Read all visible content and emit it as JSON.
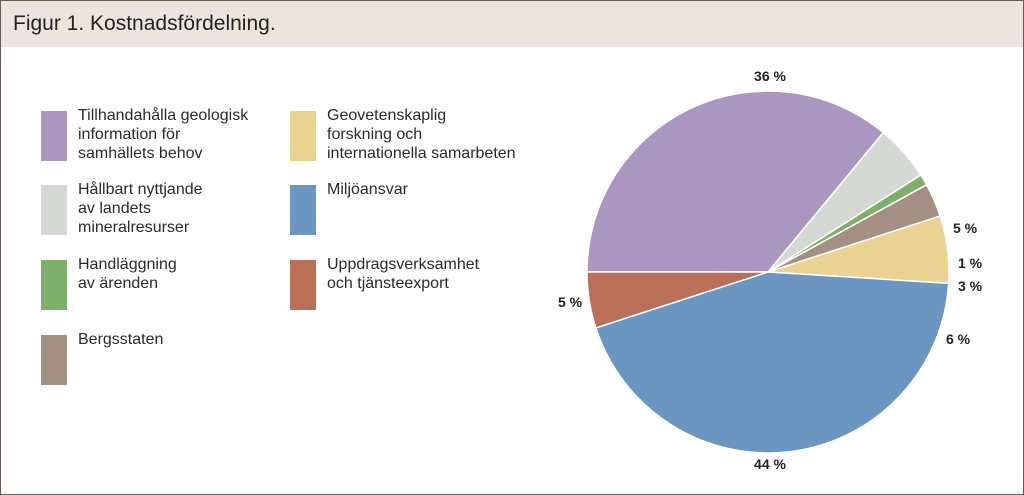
{
  "title": "Figur 1. Kostnadsfördelning.",
  "chart_data": {
    "type": "pie",
    "slices": [
      {
        "label": "Tillhandahålla geologisk\ninformation för\nsamhällets behov",
        "value": 36,
        "display": "36 %",
        "color": "#ab96bf"
      },
      {
        "label": "Hållbart nyttjande\nav landets\nmineralresurser",
        "value": 5,
        "display": "5 %",
        "color": "#d4d9d4"
      },
      {
        "label": "Handläggning\nav ärenden",
        "value": 1,
        "display": "1 %",
        "color": "#7fb06b"
      },
      {
        "label": "Bergsstaten",
        "value": 3,
        "display": "3 %",
        "color": "#a58f85"
      },
      {
        "label": "Geovetenskaplig\nforskning och\ninternationella samarbeten",
        "value": 6,
        "display": "6 %",
        "color": "#ead293"
      },
      {
        "label": "Miljöansvar",
        "value": 44,
        "display": "44 %",
        "color": "#6a96c1"
      },
      {
        "label": "Uppdragsverksamhet\noch tjänsteexport",
        "value": 5,
        "display": "5 %",
        "color": "#ba6f58"
      }
    ]
  }
}
